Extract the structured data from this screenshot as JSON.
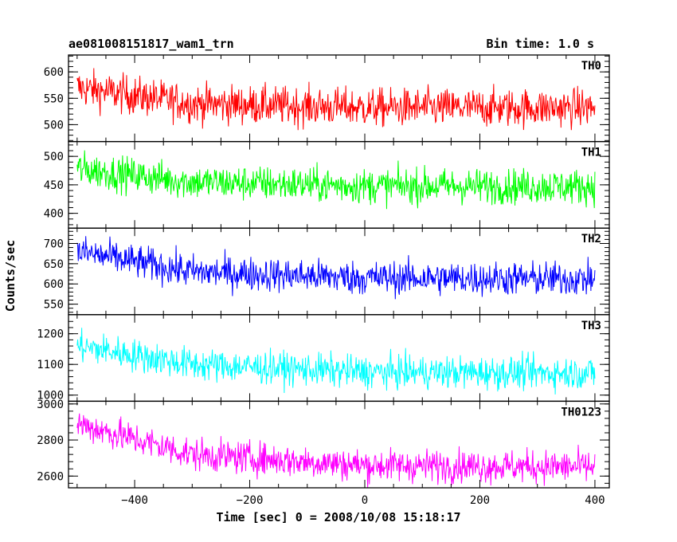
{
  "chart_data": {
    "type": "line",
    "title": "ae081008151817_wam1_trn",
    "subtitle": "Bin time: 1.0 s",
    "xlabel": "Time [sec] 0 = 2008/10/08 15:18:17",
    "ylabel": "Counts/sec",
    "xlim": [
      -515,
      425
    ],
    "xticks": [
      -400,
      -200,
      0,
      200,
      400
    ],
    "x_range": [
      -500,
      400
    ],
    "bin_time": 1.0,
    "grid": false,
    "panels": [
      {
        "name": "TH0",
        "color": "#ff0000",
        "ylim": [
          468,
          632
        ],
        "yticks": [
          500,
          550,
          600
        ],
        "levels": [
          {
            "x": -500,
            "y": 570
          },
          {
            "x": -300,
            "y": 540
          },
          {
            "x": 0,
            "y": 532
          },
          {
            "x": 400,
            "y": 532
          }
        ],
        "sigma": 26
      },
      {
        "name": "TH1",
        "color": "#00ff00",
        "ylim": [
          374,
          526
        ],
        "yticks": [
          400,
          450,
          500
        ],
        "levels": [
          {
            "x": -500,
            "y": 478
          },
          {
            "x": -300,
            "y": 455
          },
          {
            "x": 0,
            "y": 448
          },
          {
            "x": 400,
            "y": 447
          }
        ],
        "sigma": 22
      },
      {
        "name": "TH2",
        "color": "#0000ff",
        "ylim": [
          524,
          738
        ],
        "yticks": [
          550,
          600,
          650,
          700
        ],
        "levels": [
          {
            "x": -500,
            "y": 680
          },
          {
            "x": -300,
            "y": 630
          },
          {
            "x": 0,
            "y": 615
          },
          {
            "x": 400,
            "y": 612
          }
        ],
        "sigma": 30
      },
      {
        "name": "TH3",
        "color": "#00ffff",
        "ylim": [
          980,
          1262
        ],
        "yticks": [
          1000,
          1100,
          1200
        ],
        "levels": [
          {
            "x": -500,
            "y": 1160
          },
          {
            "x": -300,
            "y": 1100
          },
          {
            "x": 0,
            "y": 1075
          },
          {
            "x": 400,
            "y": 1072
          }
        ],
        "sigma": 38
      },
      {
        "name": "TH0123",
        "color": "#ff00ff",
        "ylim": [
          2535,
          3015
        ],
        "yticks": [
          2600,
          2800,
          3000
        ],
        "levels": [
          {
            "x": -500,
            "y": 2890
          },
          {
            "x": -300,
            "y": 2720
          },
          {
            "x": 0,
            "y": 2660
          },
          {
            "x": 400,
            "y": 2650
          }
        ],
        "sigma": 65
      }
    ]
  }
}
